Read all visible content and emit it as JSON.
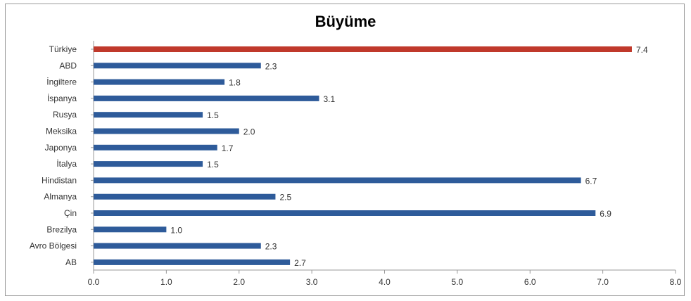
{
  "chart_data": {
    "type": "bar",
    "orientation": "horizontal",
    "title": "Büyüme",
    "categories": [
      "Türkiye",
      "ABD",
      "İngiltere",
      "İspanya",
      "Rusya",
      "Meksika",
      "Japonya",
      "İtalya",
      "Hindistan",
      "Almanya",
      "Çin",
      "Brezilya",
      "Avro Bölgesi",
      "AB"
    ],
    "values": [
      7.4,
      2.3,
      1.8,
      3.1,
      1.5,
      2.0,
      1.7,
      1.5,
      6.7,
      2.5,
      6.9,
      1.0,
      2.3,
      2.7
    ],
    "value_labels": [
      "7.4",
      "2.3",
      "1.8",
      "3.1",
      "1.5",
      "2.0",
      "1.7",
      "1.5",
      "6.7",
      "2.5",
      "6.9",
      "1.0",
      "2.3",
      "2.7"
    ],
    "xlim": [
      0,
      8
    ],
    "x_ticks": [
      "0.0",
      "1.0",
      "2.0",
      "3.0",
      "4.0",
      "5.0",
      "6.0",
      "7.0",
      "8.0"
    ],
    "xlabel": "",
    "ylabel": "",
    "grid": false,
    "legend": "none",
    "colors": {
      "default_bar": "#2e5b9a",
      "highlight_bar": "#c0392b",
      "axis": "#999999"
    },
    "highlight_index": 0
  }
}
